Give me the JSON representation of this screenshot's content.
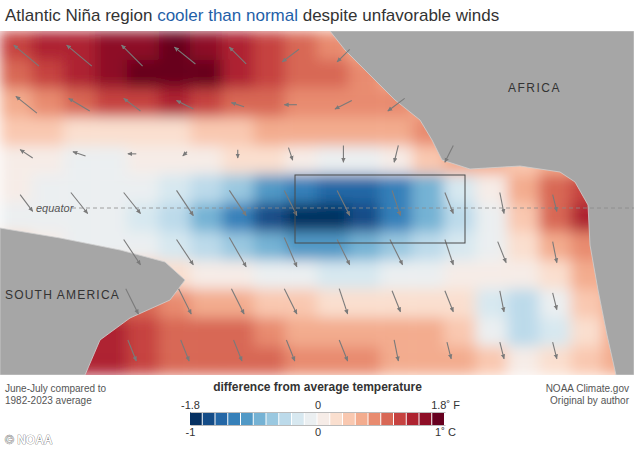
{
  "chart_data": {
    "type": "heatmap",
    "title": "Atlantic Niña region cooler than normal despite unfavorable winds",
    "title_highlight": "cooler than normal",
    "labels": {
      "africa": "AFRICA",
      "south_america": "SOUTH AMERICA",
      "equator": "equator"
    },
    "note": [
      "June-July compared to",
      "1982-2023 average"
    ],
    "source": [
      "NOAA Climate.gov",
      "Original by author"
    ],
    "credit": "© NOAA",
    "cells": [
      [
        0.6,
        0.7,
        0.7,
        0.8,
        0.8,
        0.9,
        0.8,
        0.7,
        0.6,
        0.5,
        0.4,
        0.3,
        0.3,
        0.3,
        0.3,
        0.3,
        0.3,
        0.3,
        0.3,
        0.3
      ],
      [
        0.5,
        0.6,
        0.7,
        0.8,
        0.9,
        1.0,
        0.9,
        0.7,
        0.6,
        0.5,
        0.5,
        0.4,
        0.3,
        0.3,
        0.3,
        0.3,
        0.3,
        0.3,
        0.3,
        0.3
      ],
      [
        0.3,
        0.4,
        0.5,
        0.6,
        0.6,
        0.7,
        0.6,
        0.5,
        0.5,
        0.4,
        0.4,
        0.4,
        0.4,
        0.3,
        0.3,
        0.3,
        0.3,
        0.3,
        0.3,
        0.3
      ],
      [
        0.2,
        0.2,
        0.1,
        0.1,
        0.1,
        0.1,
        0.2,
        0.2,
        0.3,
        0.3,
        0.3,
        0.3,
        0.3,
        0.4,
        0.3,
        0.3,
        0.3,
        0.3,
        0.3,
        0.3
      ],
      [
        0.0,
        0.0,
        -0.05,
        -0.05,
        0.0,
        0.05,
        0.05,
        0.1,
        0.1,
        0.0,
        -0.1,
        -0.1,
        0.0,
        0.2,
        0.3,
        0.3,
        0.2,
        0.3,
        0.3,
        0.3
      ],
      [
        0.0,
        -0.05,
        -0.1,
        -0.1,
        -0.1,
        -0.2,
        -0.3,
        -0.4,
        -0.6,
        -0.7,
        -0.8,
        -0.8,
        -0.7,
        -0.5,
        -0.2,
        0.0,
        0.3,
        0.5,
        0.6,
        0.4
      ],
      [
        -0.05,
        -0.1,
        -0.1,
        -0.1,
        -0.2,
        -0.3,
        -0.5,
        -0.7,
        -0.9,
        -1.0,
        -1.0,
        -0.9,
        -0.7,
        -0.5,
        -0.3,
        -0.1,
        0.2,
        0.5,
        0.7,
        0.5
      ],
      [
        0.1,
        0.0,
        -0.05,
        -0.1,
        -0.1,
        -0.2,
        -0.3,
        -0.4,
        -0.5,
        -0.6,
        -0.6,
        -0.5,
        -0.4,
        -0.3,
        -0.2,
        -0.05,
        0.1,
        0.3,
        0.4,
        0.3
      ],
      [
        0.3,
        0.3,
        0.3,
        0.2,
        0.2,
        0.1,
        0.0,
        0.0,
        -0.1,
        -0.1,
        -0.15,
        -0.2,
        -0.1,
        -0.05,
        0.0,
        0.0,
        0.0,
        0.1,
        0.3,
        0.3
      ],
      [
        0.4,
        0.5,
        0.5,
        0.5,
        0.5,
        0.4,
        0.3,
        0.3,
        0.2,
        0.2,
        0.1,
        0.1,
        0.1,
        0.1,
        0.1,
        -0.2,
        -0.3,
        -0.1,
        0.2,
        0.3
      ],
      [
        0.5,
        0.6,
        0.7,
        0.7,
        0.6,
        0.5,
        0.5,
        0.5,
        0.4,
        0.3,
        0.3,
        0.3,
        0.3,
        0.3,
        0.2,
        -0.1,
        -0.3,
        -0.2,
        0.1,
        0.3
      ],
      [
        0.5,
        0.6,
        0.7,
        0.7,
        0.6,
        0.5,
        0.5,
        0.5,
        0.5,
        0.4,
        0.4,
        0.4,
        0.3,
        0.3,
        0.3,
        0.2,
        0.0,
        0.1,
        0.2,
        0.3
      ]
    ],
    "winds": {
      "u": [
        [
          -0.6,
          -0.6,
          -0.5,
          -0.5,
          -0.4,
          -0.4,
          -0.3,
          null,
          null,
          null,
          null,
          null
        ],
        [
          -0.5,
          -0.5,
          -0.4,
          -0.4,
          -0.3,
          -0.3,
          -0.4,
          -0.4,
          null,
          null,
          null,
          null
        ],
        [
          -0.3,
          -0.3,
          -0.2,
          -0.1,
          0.0,
          0.1,
          0.0,
          -0.1,
          -0.2,
          null,
          null,
          null
        ],
        [
          0.3,
          0.4,
          0.4,
          0.4,
          0.4,
          0.3,
          0.3,
          0.2,
          0.2,
          0.1,
          0.1,
          null
        ],
        [
          null,
          null,
          0.4,
          0.4,
          0.4,
          0.3,
          0.3,
          0.3,
          0.2,
          0.2,
          0.1,
          null
        ],
        [
          null,
          null,
          0.3,
          0.3,
          0.3,
          0.3,
          0.2,
          0.2,
          0.2,
          0.1,
          0.1,
          null
        ],
        [
          null,
          null,
          0.2,
          0.2,
          0.2,
          0.2,
          0.2,
          0.1,
          0.1,
          0.1,
          0.1,
          null
        ]
      ],
      "v": [
        [
          0.5,
          0.5,
          0.5,
          0.4,
          0.4,
          -0.3,
          -0.3,
          null,
          null,
          null,
          null,
          null
        ],
        [
          0.4,
          0.3,
          0.3,
          0.2,
          0.1,
          0.0,
          -0.2,
          -0.3,
          null,
          null,
          null,
          null
        ],
        [
          0.2,
          0.1,
          0.0,
          -0.1,
          -0.2,
          -0.3,
          -0.4,
          -0.4,
          -0.4,
          null,
          null,
          null
        ],
        [
          -0.4,
          -0.5,
          -0.5,
          -0.6,
          -0.6,
          -0.6,
          -0.6,
          -0.6,
          -0.5,
          -0.5,
          -0.4,
          null
        ],
        [
          null,
          null,
          -0.6,
          -0.6,
          -0.7,
          -0.7,
          -0.6,
          -0.6,
          -0.6,
          -0.5,
          -0.5,
          null
        ],
        [
          null,
          null,
          -0.6,
          -0.6,
          -0.6,
          -0.6,
          -0.6,
          -0.5,
          -0.5,
          -0.5,
          -0.4,
          null
        ],
        [
          null,
          null,
          -0.5,
          -0.5,
          -0.5,
          -0.5,
          -0.5,
          -0.5,
          -0.4,
          -0.4,
          -0.4,
          null
        ]
      ]
    },
    "colorbar": {
      "label": "difference from average temperature",
      "lim": [
        -1,
        1
      ],
      "ticks": [
        -1,
        0,
        {
          "value": 1,
          "label": "1˚ C"
        }
      ],
      "lim_f": [
        -1.8,
        1.8
      ],
      "ticks_f": [
        -1.8,
        0,
        {
          "value": 1.8,
          "label": "1.8˚ F"
        }
      ]
    }
  }
}
